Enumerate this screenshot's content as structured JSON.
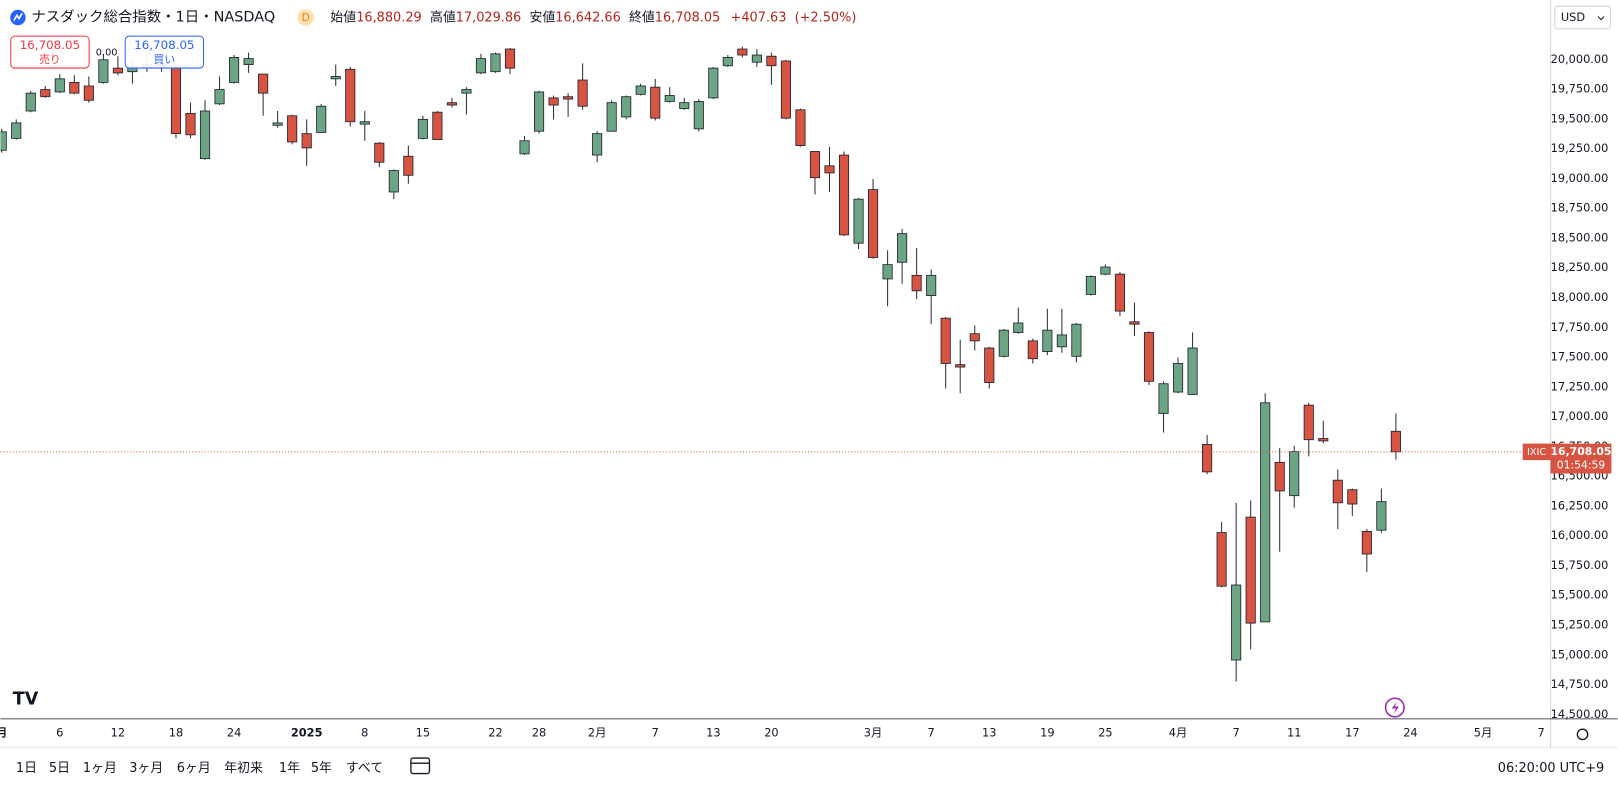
{
  "header": {
    "title": "ナスダック総合指数・1日・NASDAQ",
    "badge": "D",
    "open_label": "始値",
    "open": "16,880.29",
    "high_label": "高値",
    "high": "17,029.86",
    "low_label": "安値",
    "low": "16,642.66",
    "close_label": "終値",
    "close": "16,708.05",
    "change": "+407.63",
    "change_pct": "(+2.50%)"
  },
  "trade": {
    "sell_price": "16,708.05",
    "sell_label": "売り",
    "spread": "0.00",
    "buy_price": "16,708.05",
    "buy_label": "買い"
  },
  "currency": "USD",
  "price_tag": {
    "symbol": "IXIC",
    "price": "16,708.05",
    "countdown": "01:54:59"
  },
  "ranges": [
    "1日",
    "5日",
    "1ヶ月",
    "3ヶ月",
    "6ヶ月",
    "年初来",
    "1年",
    "5年",
    "すべて"
  ],
  "clock": "06:20:00 UTC+9",
  "chart_data": {
    "type": "candlestick",
    "up_color": "#6ba583",
    "down_color": "#d75442",
    "grid": false,
    "last_price_line": true,
    "open": [
      19240,
      19340,
      19570,
      19750,
      19730,
      19810,
      19780,
      19810,
      19930,
      19900,
      19960,
      19940,
      19940,
      19550,
      19170,
      19630,
      19810,
      19960,
      19880,
      19450,
      19530,
      19380,
      19390,
      19840,
      19920,
      19460,
      19300,
      18890,
      19190,
      19340,
      19560,
      19640,
      19720,
      19890,
      19900,
      20090,
      19210,
      19400,
      19680,
      19690,
      19830,
      19200,
      19400,
      19520,
      19710,
      19770,
      19650,
      19590,
      19420,
      19680,
      19950,
      20090,
      19980,
      20030,
      19990,
      19580,
      19230,
      19110,
      19200,
      18460,
      18910,
      18160,
      18300,
      18190,
      18020,
      17830,
      17440,
      17700,
      17580,
      17510,
      17710,
      17640,
      17550,
      17590,
      17510,
      18030,
      18200,
      18200,
      17800,
      17710,
      17030,
      17210,
      17190,
      16770,
      16030,
      14960,
      16160,
      15280,
      16620,
      16340,
      17100,
      16820,
      16470,
      16390,
      16040,
      16050,
      16880.29
    ],
    "high": [
      19420,
      19500,
      19740,
      19780,
      19880,
      19870,
      19860,
      20050,
      20030,
      19990,
      20010,
      20000,
      19990,
      19640,
      19660,
      19860,
      20040,
      20060,
      19880,
      19570,
      19540,
      19500,
      19630,
      19960,
      19940,
      19570,
      19310,
      19080,
      19280,
      19530,
      19570,
      19680,
      19770,
      20050,
      20060,
      20100,
      19360,
      19740,
      19700,
      19720,
      19970,
      19400,
      19660,
      19700,
      19800,
      19840,
      19770,
      19680,
      19670,
      19940,
      20040,
      20110,
      20090,
      20060,
      20000,
      19590,
      19230,
      19270,
      19230,
      18840,
      19000,
      18400,
      18580,
      18420,
      18240,
      17840,
      17650,
      17770,
      17590,
      17740,
      17920,
      17660,
      17910,
      17910,
      17790,
      18190,
      18280,
      18220,
      17960,
      17720,
      17300,
      17500,
      17710,
      16850,
      16120,
      16280,
      16300,
      17200,
      16740,
      16760,
      17120,
      16970,
      16560,
      16400,
      16060,
      16400,
      17029.86
    ],
    "low": [
      19220,
      19330,
      19560,
      19680,
      19720,
      19710,
      19640,
      19800,
      19870,
      19800,
      19900,
      19900,
      19340,
      19340,
      19160,
      19620,
      19800,
      19890,
      19530,
      19430,
      19290,
      19110,
      19390,
      19780,
      19440,
      19320,
      19100,
      18830,
      18960,
      19330,
      19330,
      19600,
      19540,
      19880,
      19890,
      19880,
      19200,
      19380,
      19500,
      19520,
      19580,
      19140,
      19400,
      19500,
      19700,
      19490,
      19640,
      19580,
      19400,
      19670,
      19940,
      20020,
      19940,
      19790,
      19500,
      19270,
      18870,
      18890,
      18520,
      18410,
      18330,
      17930,
      18120,
      17990,
      17780,
      17240,
      17200,
      17560,
      17240,
      17500,
      17700,
      17450,
      17520,
      17540,
      17460,
      18020,
      18190,
      17850,
      17680,
      17270,
      16870,
      17200,
      17190,
      16520,
      15570,
      14780,
      15050,
      15280,
      15870,
      16240,
      16670,
      16780,
      16060,
      16170,
      15700,
      16030,
      16642.66
    ],
    "close": [
      19395,
      19470,
      19720,
      19690,
      19840,
      19720,
      19660,
      20000,
      19890,
      19940,
      19940,
      19960,
      19380,
      19370,
      19570,
      19750,
      20020,
      20010,
      19720,
      19470,
      19310,
      19260,
      19610,
      19860,
      19480,
      19480,
      19140,
      19070,
      19030,
      19500,
      19330,
      19620,
      19750,
      20010,
      20050,
      19930,
      19320,
      19730,
      19620,
      19670,
      19610,
      19380,
      19640,
      19690,
      19780,
      19510,
      19700,
      19640,
      19650,
      19930,
      20020,
      20040,
      20040,
      19950,
      19510,
      19280,
      19010,
      19050,
      18530,
      18830,
      18340,
      18280,
      18540,
      18060,
      18190,
      17450,
      17420,
      17640,
      17290,
      17730,
      17790,
      17490,
      17730,
      17690,
      17780,
      18180,
      18260,
      17890,
      17780,
      17300,
      17280,
      17450,
      17580,
      16540,
      15580,
      15590,
      15270,
      17120,
      16380,
      16710,
      16810,
      16800,
      16280,
      16270,
      15850,
      16290,
      16708.05
    ],
    "xlim": [
      -0.09,
      106.65
    ],
    "xticks": [
      {
        "value": 0,
        "label": "月"
      },
      {
        "value": 4,
        "label": "6"
      },
      {
        "value": 8,
        "label": "12"
      },
      {
        "value": 12,
        "label": "18"
      },
      {
        "value": 16,
        "label": "24"
      },
      {
        "value": 21,
        "label": "2025"
      },
      {
        "value": 25,
        "label": "8"
      },
      {
        "value": 29,
        "label": "15"
      },
      {
        "value": 34,
        "label": "22"
      },
      {
        "value": 37,
        "label": "28"
      },
      {
        "value": 41,
        "label": "2月"
      },
      {
        "value": 45,
        "label": "7"
      },
      {
        "value": 49,
        "label": "13"
      },
      {
        "value": 53,
        "label": "20"
      },
      {
        "value": 60,
        "label": "3月"
      },
      {
        "value": 64,
        "label": "7"
      },
      {
        "value": 68,
        "label": "13"
      },
      {
        "value": 72,
        "label": "19"
      },
      {
        "value": 76,
        "label": "25"
      },
      {
        "value": 81,
        "label": "4月"
      },
      {
        "value": 85,
        "label": "7"
      },
      {
        "value": 89,
        "label": "11"
      },
      {
        "value": 93,
        "label": "17"
      },
      {
        "value": 97,
        "label": "24"
      },
      {
        "value": 102,
        "label": "5月"
      },
      {
        "value": 106,
        "label": "7"
      }
    ],
    "ylim": [
      14466,
      20502
    ],
    "yticks": [
      {
        "value": 14500,
        "label": "14,500.00"
      },
      {
        "value": 14750,
        "label": "14,750.00"
      },
      {
        "value": 15000,
        "label": "15,000.00"
      },
      {
        "value": 15250,
        "label": "15,250.00"
      },
      {
        "value": 15500,
        "label": "15,500.00"
      },
      {
        "value": 15750,
        "label": "15,750.00"
      },
      {
        "value": 16000,
        "label": "16,000.00"
      },
      {
        "value": 16250,
        "label": "16,250.00"
      },
      {
        "value": 16500,
        "label": "16,500.00"
      },
      {
        "value": 16750,
        "label": "16,750.00"
      },
      {
        "value": 17000,
        "label": "17,000.00"
      },
      {
        "value": 17250,
        "label": "17,250.00"
      },
      {
        "value": 17500,
        "label": "17,500.00"
      },
      {
        "value": 17750,
        "label": "17,750.00"
      },
      {
        "value": 18000,
        "label": "18,000.00"
      },
      {
        "value": 18250,
        "label": "18,250.00"
      },
      {
        "value": 18500,
        "label": "18,500.00"
      },
      {
        "value": 18750,
        "label": "18,750.00"
      },
      {
        "value": 19000,
        "label": "19,000.00"
      },
      {
        "value": 19250,
        "label": "19,250.00"
      },
      {
        "value": 19500,
        "label": "19,500.00"
      },
      {
        "value": 19750,
        "label": "19,750.00"
      },
      {
        "value": 20000,
        "label": "20,000.00"
      }
    ]
  }
}
